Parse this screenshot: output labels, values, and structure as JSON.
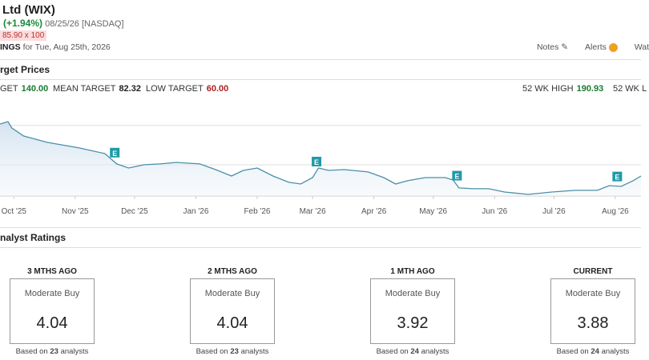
{
  "header": {
    "title": "Ltd (WIX)",
    "change": "(+1.94%)",
    "date_exchange": "08/25/26 [NASDAQ]",
    "bid_ask": "85.90 x 100",
    "ratings_word": "INGS",
    "ratings_date": "for Tue, Aug 25th, 2026",
    "actions": [
      "Notes",
      "Alerts",
      "Wat"
    ]
  },
  "targets": {
    "title": "rget Prices",
    "items": [
      {
        "label": "GET",
        "value": "140.00",
        "tone": "high"
      },
      {
        "label": "MEAN TARGET",
        "value": "82.32",
        "tone": "mean"
      },
      {
        "label": "LOW TARGET",
        "value": "60.00",
        "tone": "low"
      }
    ],
    "range": [
      {
        "label": "52 WK HIGH",
        "value": "190.93",
        "tone": "high"
      },
      {
        "label": "52 WK L",
        "value": "",
        "tone": "mean"
      }
    ]
  },
  "chart_data": {
    "type": "line",
    "color": "#4a8fa8",
    "x": [
      -7,
      -3,
      -1,
      5,
      17,
      33,
      46,
      52,
      58,
      66,
      74,
      82,
      94,
      102,
      110,
      116,
      123,
      131,
      139,
      145,
      151,
      154,
      159,
      167,
      179,
      187,
      193,
      199,
      208,
      218,
      222,
      225,
      232,
      240,
      248,
      260,
      272,
      284,
      295,
      301,
      307,
      313,
      317
    ],
    "series": [
      {
        "name": "WIX",
        "color": "#4a8fa8",
        "values": [
          182.2,
          185.7,
          176.2,
          164.3,
          154.8,
          146.5,
          138.1,
          122.7,
          116.7,
          121.5,
          122.7,
          125.0,
          122.7,
          114.3,
          104.8,
          113.1,
          116.7,
          104.8,
          95.3,
          92.9,
          102.4,
          116.7,
          113.1,
          114.3,
          110.8,
          102.4,
          92.9,
          97.7,
          102.4,
          102.4,
          98.9,
          87.0,
          85.8,
          85.8,
          81.0,
          77.4,
          81.0,
          83.4,
          83.4,
          90.5,
          89.3,
          97.7,
          104.8
        ]
      }
    ],
    "xlim": [
      -7,
      317
    ],
    "ylim": [
      75,
      200
    ],
    "grid": true,
    "yticks": [
      121.5,
      180
    ],
    "xticks": [
      {
        "value": 0,
        "label": "Oct '25"
      },
      {
        "value": 31,
        "label": "Nov '25"
      },
      {
        "value": 61,
        "label": "Dec '25"
      },
      {
        "value": 92,
        "label": "Jan '26"
      },
      {
        "value": 123,
        "label": "Feb '26"
      },
      {
        "value": 151,
        "label": "Mar '26"
      },
      {
        "value": 182,
        "label": "Apr '26"
      },
      {
        "value": 212,
        "label": "May '26"
      },
      {
        "value": 243,
        "label": "Jun '26"
      },
      {
        "value": 273,
        "label": "Jul '26"
      },
      {
        "value": 304,
        "label": "Aug '26"
      }
    ],
    "events": [
      {
        "x": 51,
        "label": "E"
      },
      {
        "x": 153,
        "label": "E"
      },
      {
        "x": 224,
        "label": "E"
      },
      {
        "x": 305,
        "label": "E"
      }
    ]
  },
  "ratings": {
    "title": "nalyst Ratings",
    "cards": [
      {
        "period": "3 MTHS AGO",
        "rating": "Moderate Buy",
        "score": "4.04",
        "basis": [
          "Based on",
          "23",
          "analysts"
        ]
      },
      {
        "period": "2 MTHS AGO",
        "rating": "Moderate Buy",
        "score": "4.04",
        "basis": [
          "Based on",
          "23",
          "analysts"
        ]
      },
      {
        "period": "1 MTH AGO",
        "rating": "Moderate Buy",
        "score": "3.92",
        "basis": [
          "Based on",
          "24",
          "analysts"
        ]
      },
      {
        "period": "CURRENT",
        "rating": "Moderate Buy",
        "score": "3.88",
        "basis": [
          "Based on",
          "24",
          "analysts"
        ]
      }
    ]
  }
}
